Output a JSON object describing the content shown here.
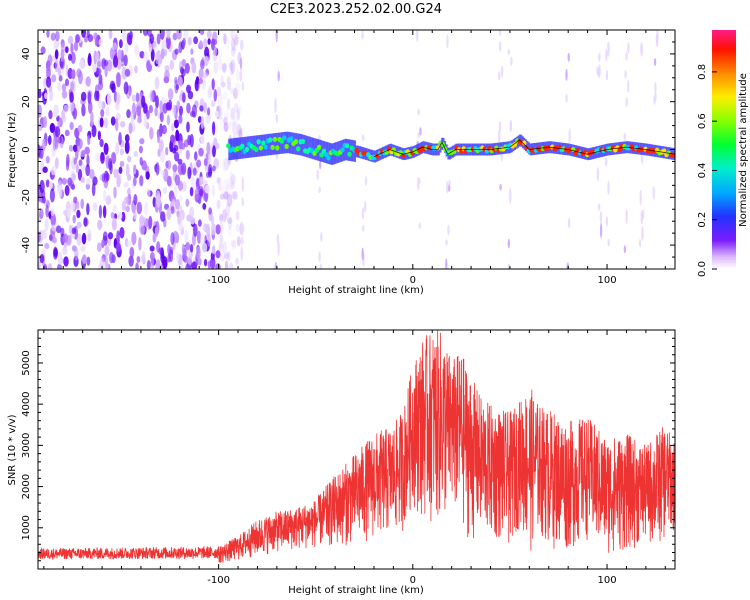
{
  "title": "C2E3.2023.252.02.00.G24",
  "colors": {
    "snr_line": "#ee3333",
    "track_core": "#ff1a1a",
    "colormap": [
      "#ffffff",
      "#e6ccff",
      "#b266ff",
      "#6600ff",
      "#2233ff",
      "#00bbff",
      "#00ff88",
      "#66ff00",
      "#ffff00",
      "#ff8800",
      "#ff0000",
      "#ff1a88"
    ]
  },
  "chart_data": [
    {
      "type": "heatmap",
      "xlabel": "Height of straight line (km)",
      "ylabel": "Frequency (Hz)",
      "xlim": [
        -193,
        135
      ],
      "ylim": [
        -50,
        50
      ],
      "xticks": [
        -100,
        0,
        100
      ],
      "yticks": [
        -40,
        -20,
        0,
        20,
        40
      ],
      "grid": false,
      "colorbar": {
        "label": "Normalized spectral amplitude",
        "range": [
          0.0,
          0.97
        ],
        "ticks": [
          "0.0",
          "0.2",
          "0.4",
          "0.6",
          "0.8"
        ]
      },
      "noise_region_x": [
        -193,
        -88
      ],
      "track_start_x": -95,
      "signal_track": {
        "x": [
          -95,
          -85,
          -75,
          -65,
          -58,
          -50,
          -42,
          -35,
          -28,
          -20,
          -12,
          -5,
          0,
          5,
          10,
          13,
          15,
          18,
          22,
          30,
          40,
          50,
          55,
          60,
          70,
          80,
          90,
          100,
          110,
          120,
          135
        ],
        "freq_hz": [
          0,
          1,
          2,
          3,
          2,
          0,
          -2,
          0,
          -1,
          -3,
          0,
          -2,
          -1,
          1,
          0,
          0,
          3,
          -2,
          0,
          0,
          0,
          1,
          4,
          0,
          1,
          0,
          -2,
          0,
          1,
          0,
          -2
        ]
      }
    },
    {
      "type": "line",
      "xlabel": "Height of straight line (km)",
      "ylabel": "SNR (10 * v/v)",
      "xlim": [
        -193,
        135
      ],
      "ylim": [
        0,
        5800
      ],
      "xticks": [
        -100,
        0,
        100
      ],
      "yticks": [
        1000,
        2000,
        3000,
        4000,
        5000
      ],
      "grid": false,
      "series": [
        {
          "envelope_x": [
            -193,
            -100,
            -90,
            -80,
            -70,
            -60,
            -50,
            -40,
            -30,
            -20,
            -10,
            -5,
            0,
            5,
            10,
            15,
            20,
            25,
            30,
            35,
            40,
            50,
            55,
            60,
            65,
            70,
            80,
            90,
            100,
            110,
            120,
            125,
            130,
            135
          ],
          "envelope_max": [
            500,
            550,
            800,
            1200,
            1400,
            1500,
            1700,
            2300,
            2800,
            3300,
            3500,
            3900,
            5000,
            5600,
            5800,
            5800,
            5100,
            5300,
            4700,
            4200,
            4000,
            3800,
            4100,
            4500,
            4000,
            3900,
            3600,
            3700,
            3200,
            3300,
            3000,
            3300,
            3500,
            3100
          ],
          "envelope_min": [
            120,
            120,
            200,
            300,
            400,
            450,
            500,
            500,
            600,
            700,
            800,
            900,
            1500,
            1200,
            1100,
            1000,
            1300,
            1000,
            600,
            800,
            700,
            500,
            1000,
            300,
            800,
            500,
            400,
            700,
            300,
            400,
            600,
            500,
            700,
            900
          ]
        }
      ]
    }
  ]
}
